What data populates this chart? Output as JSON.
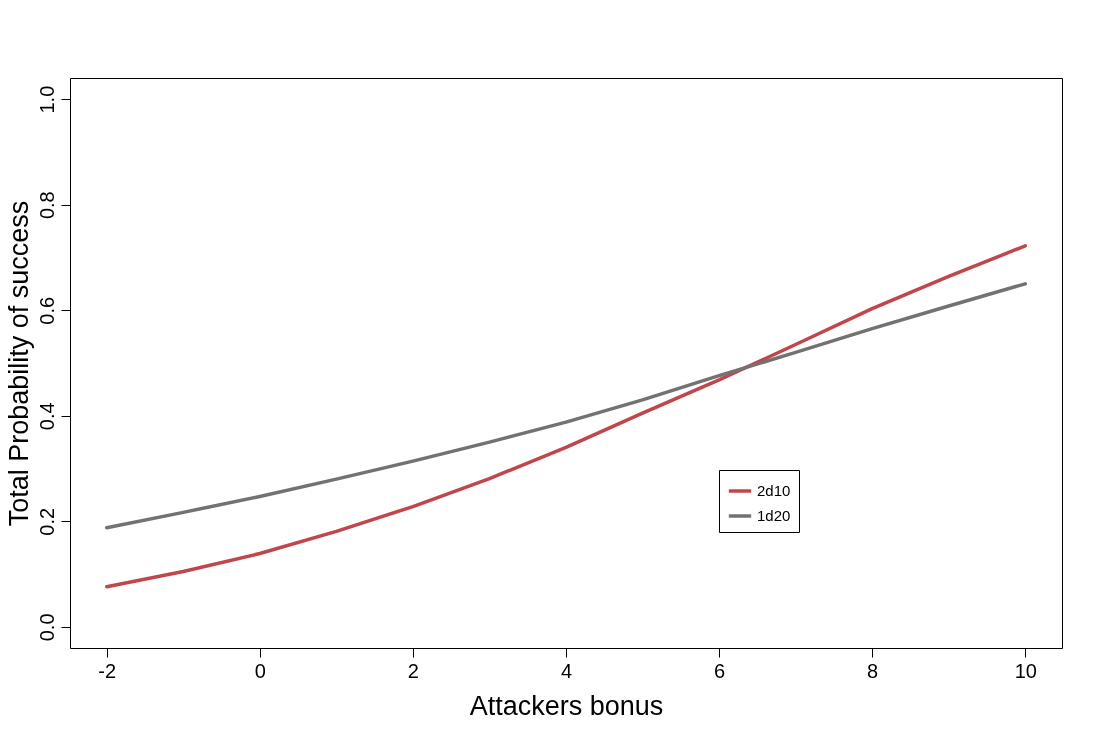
{
  "chart_data": {
    "type": "line",
    "xlabel": "Attackers bonus",
    "ylabel": "Total Probability of success",
    "x": [
      -2,
      -1,
      0,
      1,
      2,
      3,
      4,
      5,
      6,
      7,
      8,
      9,
      10
    ],
    "series": [
      {
        "name": "2d10",
        "color": "#c0464b",
        "values": [
          0.076,
          0.105,
          0.139,
          0.181,
          0.228,
          0.281,
          0.34,
          0.405,
          0.468,
          0.535,
          0.603,
          0.664,
          0.722
        ]
      },
      {
        "name": "1d20",
        "color": "#767171",
        "values": [
          0.188,
          0.217,
          0.247,
          0.28,
          0.314,
          0.35,
          0.388,
          0.43,
          0.476,
          0.52,
          0.565,
          0.608,
          0.65
        ]
      }
    ],
    "xlim": [
      -2.48,
      10.48
    ],
    "ylim": [
      -0.04,
      1.04
    ],
    "xticks": [
      -2,
      0,
      2,
      4,
      6,
      8,
      10
    ],
    "yticks": [
      {
        "value": 0,
        "label": "0.0"
      },
      {
        "value": 0.2,
        "label": "0.2"
      },
      {
        "value": 0.4,
        "label": "0.4"
      },
      {
        "value": 0.6,
        "label": "0.6"
      },
      {
        "value": 0.8,
        "label": "0.8"
      },
      {
        "value": 1,
        "label": "1.0"
      }
    ],
    "legend": "bottom right",
    "grid": false,
    "line_style": "solid",
    "marker": "none"
  }
}
